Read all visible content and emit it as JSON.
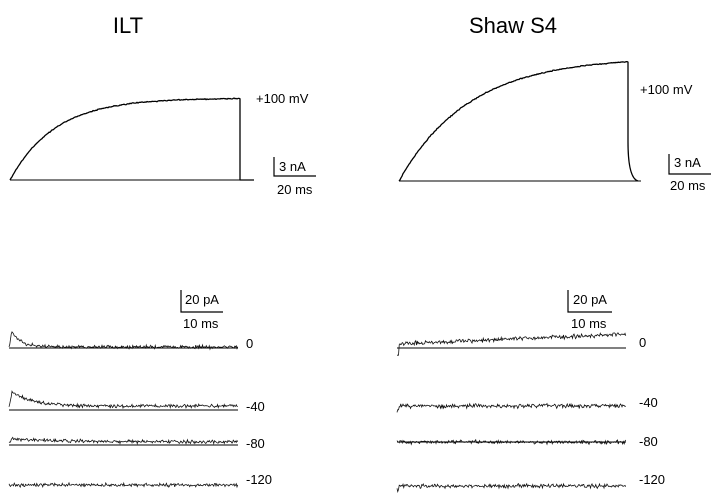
{
  "panels": {
    "left": {
      "title": "ILT",
      "top_voltage": "+100 mV",
      "top_scale": {
        "y": "3 nA",
        "x": "20 ms"
      },
      "bottom_scale": {
        "y": "20 pA",
        "x": "10 ms"
      },
      "voltages": [
        "0",
        "-40",
        "-80",
        "-120"
      ]
    },
    "right": {
      "title": "Shaw S4",
      "top_voltage": "+100 mV",
      "top_scale": {
        "y": "3 nA",
        "x": "20 ms"
      },
      "bottom_scale": {
        "y": "20 pA",
        "x": "10 ms"
      },
      "voltages": [
        "0",
        "-40",
        "-80",
        "-120"
      ]
    }
  }
}
